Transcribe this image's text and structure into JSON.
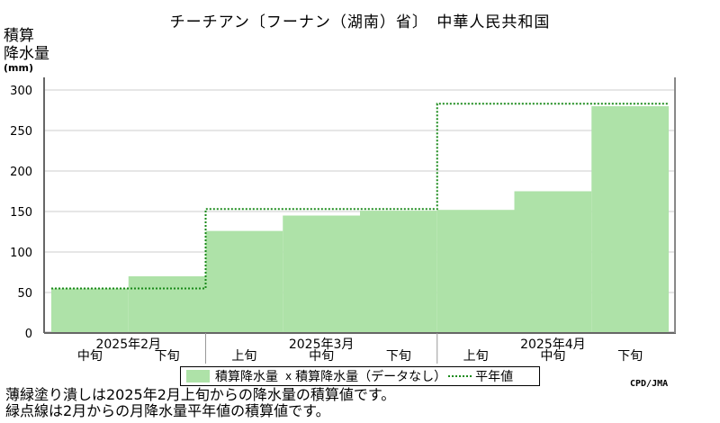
{
  "title": "チーチアン〔フーナン（湖南）省〕　中華人民共和国",
  "ylabel_line1": "積算",
  "ylabel_line2": "降水量",
  "yunit": "(mm)",
  "credit": "CPD/JMA",
  "notes": [
    "薄緑塗り潰しは2025年2月上旬からの降水量の積算値です。",
    "緑点線は2月からの月降水量平年値の積算値です。"
  ],
  "legend": {
    "area_label": "積算降水量",
    "marker": "x",
    "missing_label": "積算降水量（データなし）",
    "normal_label": "平年値"
  },
  "colors": {
    "fill": "#aee2a8",
    "normal_line": "#1a8a1a",
    "grid": "#cccccc"
  },
  "chart_data": {
    "type": "area",
    "ylim": [
      0,
      300
    ],
    "yticks": [
      0,
      50,
      100,
      150,
      200,
      250,
      300
    ],
    "periods": [
      "中旬",
      "下旬",
      "上旬",
      "中旬",
      "下旬",
      "上旬",
      "中旬",
      "下旬"
    ],
    "months": [
      {
        "label": "2025年2月",
        "start": 0,
        "count": 2
      },
      {
        "label": "2025年3月",
        "start": 2,
        "count": 3
      },
      {
        "label": "2025年4月",
        "start": 5,
        "count": 3
      }
    ],
    "accumulated_precipitation": [
      55,
      70,
      126,
      145,
      151,
      152,
      175,
      280
    ],
    "normal_monthly_accumulated": [
      {
        "month": "2025年2月",
        "value": 55
      },
      {
        "month": "2025年3月",
        "value": 153
      },
      {
        "month": "2025年4月",
        "value": 283
      }
    ],
    "grid": true
  }
}
